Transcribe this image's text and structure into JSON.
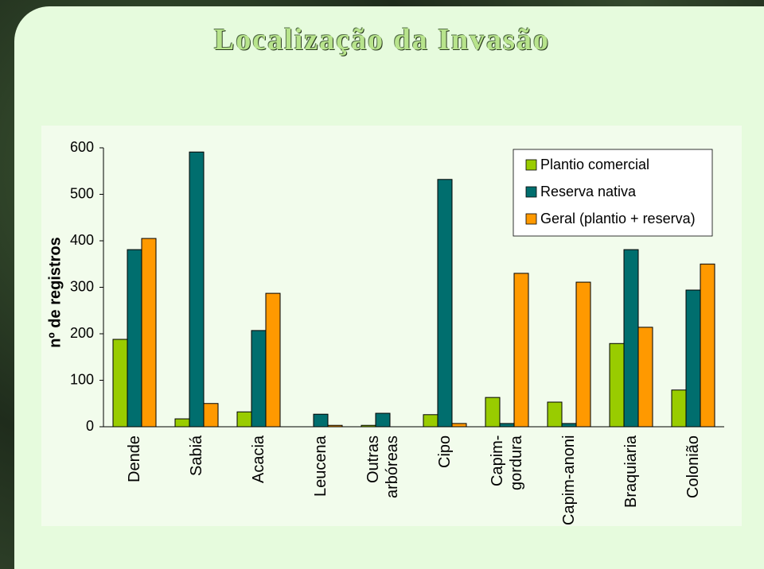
{
  "chart_data": {
    "type": "bar",
    "title": "Localização da Invasão",
    "y_label": "nº de registros",
    "categories": [
      "Dende",
      "Sabiá",
      "Acacia",
      "Leucena",
      "Outras arbóreas",
      "Cipo",
      "Capim-gordura",
      "Capim-anoni",
      "Braquiaria",
      "Colonião"
    ],
    "series": [
      {
        "name": "Plantio comercial",
        "color": "#99cc00",
        "values": [
          188,
          17,
          32,
          0,
          3,
          26,
          63,
          53,
          179,
          79
        ]
      },
      {
        "name": "Reserva nativa",
        "color": "#006e6e",
        "values": [
          381,
          591,
          207,
          27,
          29,
          532,
          7,
          7,
          381,
          294
        ]
      },
      {
        "name": "Geral (plantio + reserva)",
        "color": "#ff9900",
        "values": [
          405,
          50,
          287,
          3,
          0,
          7,
          330,
          311,
          214,
          350
        ]
      }
    ],
    "ylim": [
      0,
      600
    ],
    "yticks": [
      0,
      100,
      200,
      300,
      400,
      500,
      600
    ],
    "legend": "top-right",
    "grid": false
  }
}
